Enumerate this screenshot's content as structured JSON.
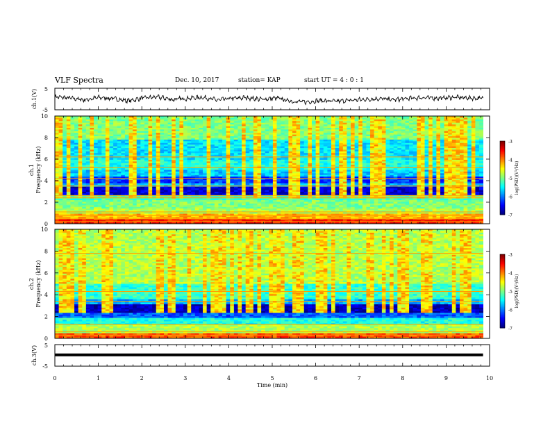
{
  "header": {
    "title": "VLF Spectra",
    "date": "Dec. 10, 2017",
    "station": "station= KAP",
    "start": "start  UT  =   4 : 0  : 1"
  },
  "chart_data": [
    {
      "type": "line",
      "panel": "ch1-waveform",
      "ylabel": "ch.1(V)",
      "yticks": [
        "5",
        "-5"
      ],
      "ylim": [
        -5,
        5
      ],
      "xlim": [
        0,
        10
      ],
      "x_end": 9.85,
      "series": [
        {
          "values": [
            1.2,
            0.5,
            -0.5,
            0.8,
            0.2,
            -1.0,
            0.6,
            1.0,
            -0.3,
            0.4,
            0.9,
            -0.6,
            0.3,
            0.7,
            -0.2,
            0.5,
            -1.2,
            -1.6,
            -0.8,
            -1.3,
            -0.7,
            -0.2,
            0.2,
            -0.4,
            0.3,
            0.8,
            0.4,
            0.9,
            0.6,
            0.3
          ]
        }
      ]
    },
    {
      "type": "heatmap",
      "panel": "ch1-spectrogram",
      "ylabel": "ch.1\nFrequency (kHz)",
      "yticks": [
        "0",
        "2",
        "4",
        "6",
        "8",
        "10"
      ],
      "ylim": [
        0,
        10
      ],
      "xlim": [
        0,
        10
      ],
      "colorbar": {
        "label": "log(PSD)(V²/Hz)",
        "ticks": [
          "-3",
          "-4",
          "-5",
          "-6",
          "-7"
        ],
        "range": [
          -7,
          -3
        ]
      },
      "bands": [
        {
          "f": [
            0,
            0.4
          ],
          "level": 0.85
        },
        {
          "f": [
            0.4,
            0.9
          ],
          "level": 0.7
        },
        {
          "f": [
            0.9,
            1.4
          ],
          "level": 0.55
        },
        {
          "f": [
            1.4,
            2.2
          ],
          "level": 0.5
        },
        {
          "f": [
            2.2,
            2.6
          ],
          "level": 0.45
        },
        {
          "f": [
            2.6,
            3.4
          ],
          "level": 0.08
        },
        {
          "f": [
            3.4,
            3.8
          ],
          "level": 0.3
        },
        {
          "f": [
            3.8,
            4.3
          ],
          "level": 0.18
        },
        {
          "f": [
            4.3,
            5.0
          ],
          "level": 0.32
        },
        {
          "f": [
            5.0,
            6.0
          ],
          "level": 0.4
        },
        {
          "f": [
            6.0,
            7.8
          ],
          "level": 0.35
        },
        {
          "f": [
            7.8,
            10.0
          ],
          "level": 0.5
        }
      ],
      "lines_khz": [
        0.2,
        0.45,
        0.75,
        1.1,
        2.4,
        2.6,
        3.5,
        4.2,
        5.2,
        6.2
      ]
    },
    {
      "type": "heatmap",
      "panel": "ch2-spectrogram",
      "ylabel": "ch.2\nFrequency (kHz)",
      "yticks": [
        "0",
        "2",
        "4",
        "6",
        "8",
        "10"
      ],
      "ylim": [
        0,
        10
      ],
      "xlim": [
        0,
        10
      ],
      "colorbar": {
        "label": "log(PSD)(V²/Hz)",
        "ticks": [
          "-3",
          "-4",
          "-5",
          "-6",
          "-7"
        ],
        "range": [
          -7,
          -3
        ]
      },
      "bands": [
        {
          "f": [
            0,
            0.4
          ],
          "level": 0.8
        },
        {
          "f": [
            0.4,
            1.2
          ],
          "level": 0.55
        },
        {
          "f": [
            1.2,
            1.9
          ],
          "level": 0.4
        },
        {
          "f": [
            1.9,
            2.4
          ],
          "level": 0.22
        },
        {
          "f": [
            2.4,
            3.2
          ],
          "level": 0.06
        },
        {
          "f": [
            3.2,
            3.6
          ],
          "level": 0.3
        },
        {
          "f": [
            3.6,
            5.0
          ],
          "level": 0.42
        },
        {
          "f": [
            5.0,
            10.0
          ],
          "level": 0.55
        }
      ],
      "lines_khz": [
        0.3,
        0.6,
        1.3,
        3.4,
        4.3,
        7.8
      ]
    },
    {
      "type": "line",
      "panel": "ch3-waveform",
      "ylabel": "ch.3(V)",
      "yticks": [
        "5",
        "-5"
      ],
      "ylim": [
        -5,
        5
      ],
      "xlim": [
        0,
        10
      ],
      "x_end": 9.85,
      "series": [
        {
          "values": [
            1.0,
            1.0
          ]
        }
      ],
      "xlabel": "Time  (min)",
      "xticks": [
        "0",
        "1",
        "2",
        "3",
        "4",
        "5",
        "6",
        "7",
        "8",
        "9",
        "10"
      ]
    }
  ]
}
